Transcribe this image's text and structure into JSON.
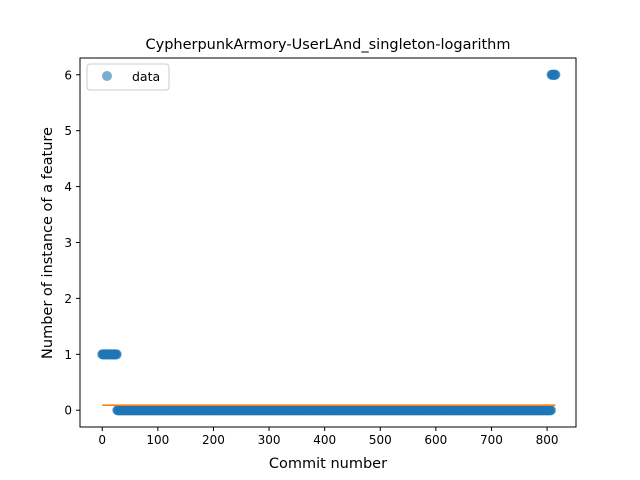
{
  "chart_data": {
    "type": "scatter",
    "title": "CypherpunkArmory-UserLAnd_singleton-logarithm",
    "xlabel": "Commit number",
    "ylabel": "Number of instance of a feature",
    "xlim": [
      -40,
      852
    ],
    "ylim": [
      -0.3,
      6.3
    ],
    "xticks": [
      0,
      100,
      200,
      300,
      400,
      500,
      600,
      700,
      800
    ],
    "yticks": [
      0,
      1,
      2,
      3,
      4,
      5,
      6
    ],
    "legend": {
      "position": "top-left",
      "entries": [
        "data"
      ]
    },
    "colors": {
      "points": "#1f77b4",
      "fit": "#ff7f0e"
    },
    "series": [
      {
        "name": "data",
        "kind": "points",
        "segments": [
          {
            "x_start": 0,
            "x_end": 26,
            "y": 1
          },
          {
            "x_start": 27,
            "x_end": 807,
            "y": 0
          },
          {
            "x_start": 808,
            "x_end": 815,
            "y": 6
          }
        ]
      },
      {
        "kind": "line",
        "x": [
          0,
          815
        ],
        "y": [
          0.09,
          0.09
        ]
      }
    ]
  }
}
